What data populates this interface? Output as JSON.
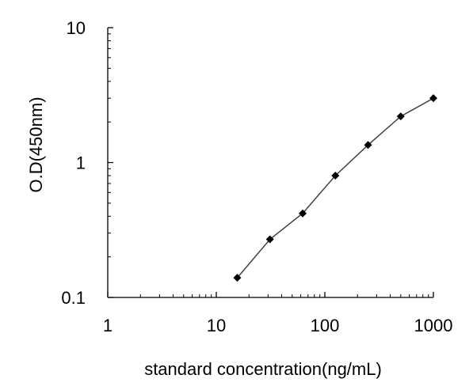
{
  "chart_data": {
    "type": "line",
    "title": "",
    "xlabel": "standard concentration(ng/mL)",
    "ylabel": "O.D(450nm)",
    "x_scale": "log",
    "y_scale": "log",
    "xlim": [
      1,
      1000
    ],
    "ylim": [
      0.1,
      10
    ],
    "x_ticks": [
      "1",
      "10",
      "100",
      "1000"
    ],
    "y_ticks": [
      "0.1",
      "1",
      "10"
    ],
    "grid": false,
    "legend": "none",
    "colors": {
      "line": "#404040",
      "marker": "#000000",
      "axis": "#000000"
    },
    "series": [
      {
        "x": [
          15.6,
          31.2,
          62.5,
          125,
          250,
          500,
          1000
        ],
        "y": [
          0.14,
          0.27,
          0.42,
          0.8,
          1.35,
          2.2,
          3.0
        ]
      }
    ]
  }
}
